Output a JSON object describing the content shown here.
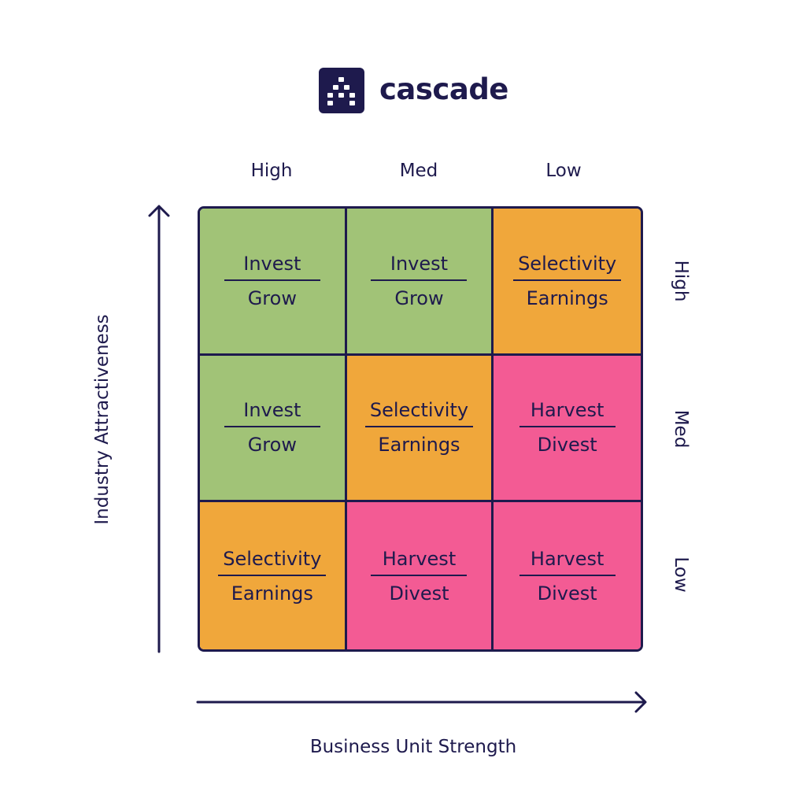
{
  "brand": {
    "name": "cascade",
    "icon": "cascade-logo-icon"
  },
  "columns": [
    "High",
    "Med",
    "Low"
  ],
  "rows": [
    "High",
    "Med",
    "Low"
  ],
  "x_axis_label": "Business Unit Strength",
  "y_axis_label": "Industry Attractiveness",
  "colors": {
    "invest": "#a1c377",
    "selectivity": "#f0a73b",
    "harvest": "#f35b94",
    "ink": "#1e1a4d"
  },
  "cells": [
    {
      "top": "Invest",
      "bottom": "Grow",
      "color": "#a1c377"
    },
    {
      "top": "Invest",
      "bottom": "Grow",
      "color": "#a1c377"
    },
    {
      "top": "Selectivity",
      "bottom": "Earnings",
      "color": "#f0a73b"
    },
    {
      "top": "Invest",
      "bottom": "Grow",
      "color": "#a1c377"
    },
    {
      "top": "Selectivity",
      "bottom": "Earnings",
      "color": "#f0a73b"
    },
    {
      "top": "Harvest",
      "bottom": "Divest",
      "color": "#f35b94"
    },
    {
      "top": "Selectivity",
      "bottom": "Earnings",
      "color": "#f0a73b"
    },
    {
      "top": "Harvest",
      "bottom": "Divest",
      "color": "#f35b94"
    },
    {
      "top": "Harvest",
      "bottom": "Divest",
      "color": "#f35b94"
    }
  ]
}
